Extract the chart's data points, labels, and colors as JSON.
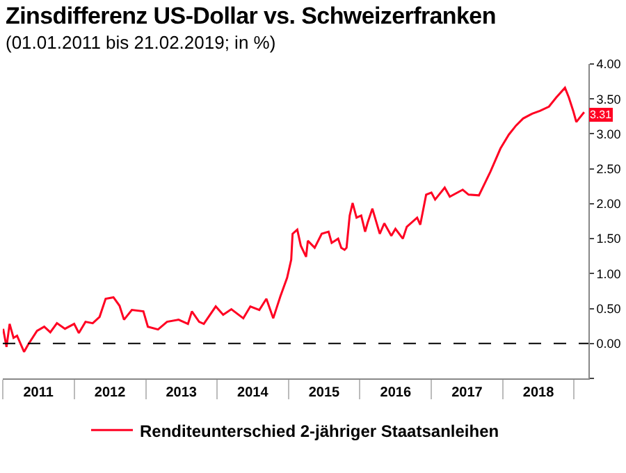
{
  "chart_data": {
    "type": "line",
    "title": "Zinsdifferenz US-Dollar vs. Schweizerfranken",
    "subtitle": "(01.01.2011 bis 21.02.2019; in %)",
    "x": [
      "2011-01-03",
      "2011-01-20",
      "2011-02-05",
      "2011-02-25",
      "2011-03-15",
      "2011-04-20",
      "2011-05-10",
      "2011-06-25",
      "2011-08-01",
      "2011-09-01",
      "2011-10-05",
      "2011-11-15",
      "2012-01-01",
      "2012-01-25",
      "2012-02-28",
      "2012-04-05",
      "2012-05-10",
      "2012-06-10",
      "2012-07-20",
      "2012-08-20",
      "2012-09-12",
      "2012-10-22",
      "2012-12-20",
      "2013-01-12",
      "2013-03-05",
      "2013-04-20",
      "2013-06-18",
      "2013-08-05",
      "2013-08-25",
      "2013-10-01",
      "2013-10-25",
      "2013-12-25",
      "2014-02-01",
      "2014-03-15",
      "2014-05-15",
      "2014-06-20",
      "2014-08-05",
      "2014-09-10",
      "2014-10-15",
      "2014-11-20",
      "2014-12-25",
      "2015-01-15",
      "2015-01-22",
      "2015-02-15",
      "2015-03-05",
      "2015-04-01",
      "2015-04-10",
      "2015-05-15",
      "2015-06-20",
      "2015-07-25",
      "2015-08-10",
      "2015-09-12",
      "2015-09-28",
      "2015-10-15",
      "2015-10-25",
      "2015-11-10",
      "2015-11-25",
      "2015-12-15",
      "2016-01-08",
      "2016-01-28",
      "2016-02-10",
      "2016-03-05",
      "2016-04-12",
      "2016-05-05",
      "2016-06-10",
      "2016-07-01",
      "2016-08-08",
      "2016-08-28",
      "2016-10-20",
      "2016-11-05",
      "2016-12-05",
      "2017-01-01",
      "2017-01-20",
      "2017-03-10",
      "2017-04-05",
      "2017-06-10",
      "2017-07-10",
      "2017-09-01",
      "2017-10-30",
      "2017-12-20",
      "2018-02-01",
      "2018-03-10",
      "2018-04-15",
      "2018-06-01",
      "2018-07-10",
      "2018-08-25",
      "2018-10-01",
      "2018-11-15",
      "2018-12-05",
      "2018-12-28",
      "2019-01-12",
      "2019-02-21"
    ],
    "series": [
      {
        "name": "Renditeunterschied 2-jähriger Staatsanleihen",
        "color": "#ff0022",
        "values": [
          0.21,
          -0.05,
          0.28,
          0.08,
          0.11,
          -0.12,
          -0.02,
          0.18,
          0.24,
          0.16,
          0.29,
          0.21,
          0.28,
          0.15,
          0.31,
          0.29,
          0.38,
          0.64,
          0.66,
          0.54,
          0.34,
          0.48,
          0.46,
          0.24,
          0.2,
          0.31,
          0.34,
          0.28,
          0.46,
          0.31,
          0.28,
          0.53,
          0.41,
          0.49,
          0.36,
          0.53,
          0.48,
          0.64,
          0.36,
          0.67,
          0.94,
          1.2,
          1.57,
          1.63,
          1.4,
          1.24,
          1.47,
          1.37,
          1.57,
          1.6,
          1.44,
          1.5,
          1.37,
          1.34,
          1.37,
          1.83,
          2.01,
          1.8,
          1.83,
          1.6,
          1.73,
          1.93,
          1.57,
          1.72,
          1.54,
          1.64,
          1.5,
          1.67,
          1.8,
          1.7,
          2.13,
          2.16,
          2.06,
          2.23,
          2.1,
          2.2,
          2.13,
          2.12,
          2.46,
          2.79,
          2.99,
          3.12,
          3.22,
          3.29,
          3.33,
          3.39,
          3.52,
          3.66,
          3.52,
          3.32,
          3.17,
          3.31
        ]
      }
    ],
    "xlim": [
      "2011-01-01",
      "2019-03-15"
    ],
    "xticks": [
      {
        "value": "2011-01-01",
        "label": null
      },
      {
        "value": "2011-07-02",
        "label": "2011"
      },
      {
        "value": "2012-01-01",
        "label": null
      },
      {
        "value": "2012-07-02",
        "label": "2012"
      },
      {
        "value": "2013-01-01",
        "label": null
      },
      {
        "value": "2013-07-02",
        "label": "2013"
      },
      {
        "value": "2014-01-01",
        "label": null
      },
      {
        "value": "2014-07-02",
        "label": "2014"
      },
      {
        "value": "2015-01-01",
        "label": null
      },
      {
        "value": "2015-07-02",
        "label": "2015"
      },
      {
        "value": "2016-01-01",
        "label": null
      },
      {
        "value": "2016-07-02",
        "label": "2016"
      },
      {
        "value": "2017-01-01",
        "label": null
      },
      {
        "value": "2017-07-02",
        "label": "2017"
      },
      {
        "value": "2018-01-01",
        "label": null
      },
      {
        "value": "2018-07-02",
        "label": "2018"
      },
      {
        "value": "2019-01-01",
        "label": null
      }
    ],
    "ylim": [
      -0.5,
      4
    ],
    "yticks": [
      {
        "value": -0.5,
        "label": null
      },
      {
        "value": 0,
        "label": "0.00"
      },
      {
        "value": 0.5,
        "label": "0.50"
      },
      {
        "value": 1,
        "label": "1.00"
      },
      {
        "value": 1.5,
        "label": "1.50"
      },
      {
        "value": 2,
        "label": "2.00"
      },
      {
        "value": 2.5,
        "label": "2.50"
      },
      {
        "value": 3,
        "label": "3.00"
      },
      {
        "value": 3.5,
        "label": "3.50"
      },
      {
        "value": 4,
        "label": "4.00"
      }
    ],
    "ref_lines": [
      {
        "axis": "y",
        "value": 0,
        "color": "#000000",
        "line_style": "dashed"
      }
    ],
    "annotations": [
      {
        "text": "3.31",
        "x": "2019-02-21",
        "y": 3.31
      }
    ],
    "grid": false,
    "legend": "bottom",
    "marker": "none",
    "line_style": "solid"
  }
}
